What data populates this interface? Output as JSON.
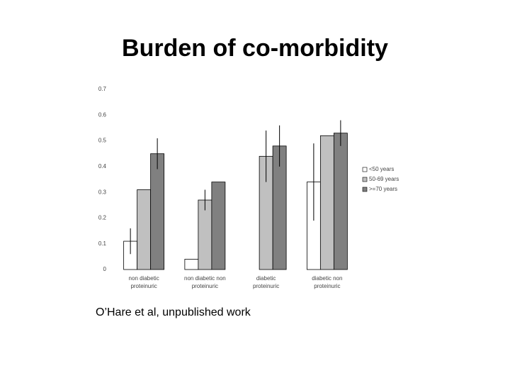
{
  "chart_data": {
    "type": "bar",
    "title": "Burden of co-morbidity",
    "categories": [
      "non diabetic proteinuric",
      "non diabetic non proteinuric",
      "diabetic proteinuric",
      "diabetic non proteinuric"
    ],
    "series": [
      {
        "name": "<50 years",
        "color": "#ffffff",
        "values": [
          0.11,
          0.04,
          0,
          0.34
        ],
        "errors": [
          0.05,
          null,
          null,
          0.15
        ]
      },
      {
        "name": "50-69 years",
        "color": "#c0c0c0",
        "values": [
          0.31,
          0.27,
          0.44,
          0.52
        ],
        "errors": [
          null,
          0.04,
          0.1,
          null
        ]
      },
      {
        "name": ">=70 years",
        "color": "#808080",
        "values": [
          0.45,
          0.34,
          0.48,
          0.53
        ],
        "errors": [
          0.06,
          null,
          0.08,
          0.05
        ]
      }
    ],
    "ylim": [
      0,
      0.7
    ],
    "yticks": [
      0,
      0.1,
      0.2,
      0.3,
      0.4,
      0.5,
      0.6,
      0.7
    ],
    "legend": "right",
    "footnote": "O’Hare et al, unpublished work"
  }
}
